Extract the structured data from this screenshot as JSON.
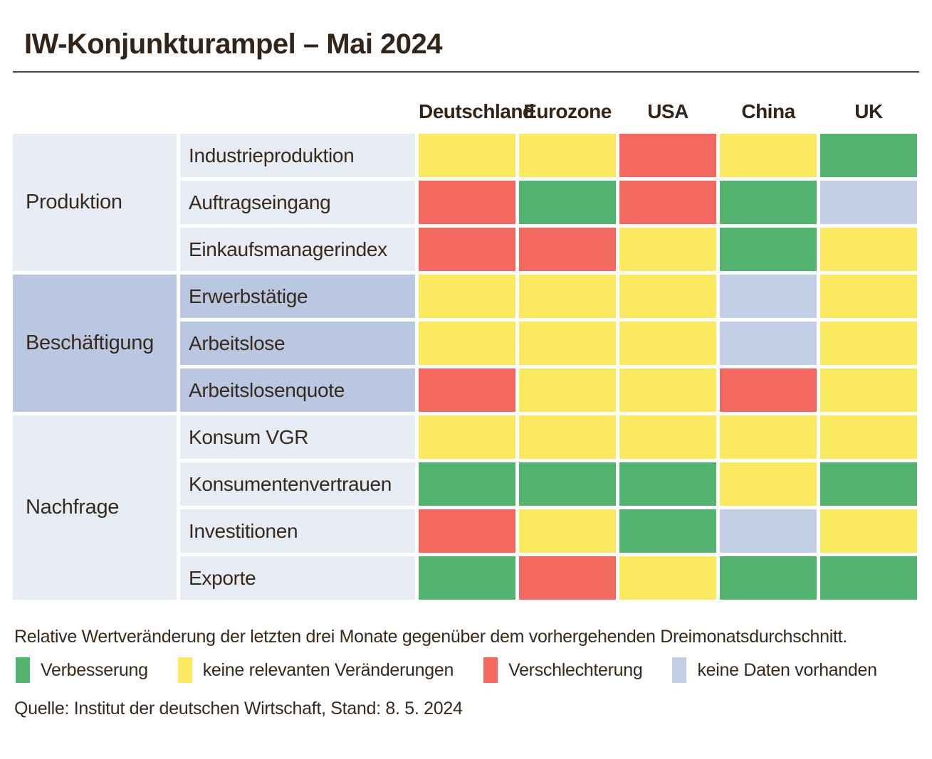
{
  "title": "IW-Konjunkturampel – Mai 2024",
  "columns": [
    "Deutschland",
    "Eurozone",
    "USA",
    "China",
    "UK"
  ],
  "note": "Relative Wertveränderung der letzten drei Monate gegenüber dem vorhergehenden Dreimonatsdurchschnitt.",
  "source": "Quelle: Institut der deutschen Wirtschaft, Stand: 8. 5. 2024",
  "legend": [
    {
      "status": "green",
      "label": "Verbesserung"
    },
    {
      "status": "yellow",
      "label": "keine relevanten Veränderungen"
    },
    {
      "status": "red",
      "label": "Verschlechterung"
    },
    {
      "status": "nodata",
      "label": "keine Daten vorhanden"
    }
  ],
  "colors": {
    "green": "#53b46f",
    "yellow": "#fbea5f",
    "red": "#f4695f",
    "nodata": "#c3cfe6",
    "group_light": "#e6ebf4",
    "group_mid": "#b9c7e0",
    "text": "#38291d"
  },
  "chart_data": {
    "type": "heatmap",
    "title": "IW-Konjunkturampel – Mai 2024",
    "x_categories": [
      "Deutschland",
      "Eurozone",
      "USA",
      "China",
      "UK"
    ],
    "value_legend": {
      "green": "Verbesserung",
      "yellow": "keine relevanten Veränderungen",
      "red": "Verschlechterung",
      "nodata": "keine Daten vorhanden"
    },
    "groups": [
      {
        "label": "Produktion",
        "shade": "light",
        "rows": [
          {
            "label": "Industrieproduktion",
            "values": [
              "yellow",
              "yellow",
              "red",
              "yellow",
              "green"
            ]
          },
          {
            "label": "Auftragseingang",
            "values": [
              "red",
              "green",
              "red",
              "green",
              "nodata"
            ]
          },
          {
            "label": "Einkaufsmanagerindex",
            "values": [
              "red",
              "red",
              "yellow",
              "green",
              "yellow"
            ]
          }
        ]
      },
      {
        "label": "Beschäftigung",
        "shade": "mid",
        "rows": [
          {
            "label": "Erwerbstätige",
            "values": [
              "yellow",
              "yellow",
              "yellow",
              "nodata",
              "yellow"
            ]
          },
          {
            "label": "Arbeitslose",
            "values": [
              "yellow",
              "yellow",
              "yellow",
              "nodata",
              "yellow"
            ]
          },
          {
            "label": "Arbeitslosenquote",
            "values": [
              "red",
              "yellow",
              "yellow",
              "red",
              "yellow"
            ]
          }
        ]
      },
      {
        "label": "Nachfrage",
        "shade": "light",
        "rows": [
          {
            "label": "Konsum VGR",
            "values": [
              "yellow",
              "yellow",
              "yellow",
              "yellow",
              "yellow"
            ]
          },
          {
            "label": "Konsumentenvertrauen",
            "values": [
              "green",
              "green",
              "green",
              "yellow",
              "green"
            ]
          },
          {
            "label": "Investitionen",
            "values": [
              "red",
              "yellow",
              "green",
              "nodata",
              "yellow"
            ]
          },
          {
            "label": "Exporte",
            "values": [
              "green",
              "red",
              "yellow",
              "green",
              "green"
            ]
          }
        ]
      }
    ]
  }
}
